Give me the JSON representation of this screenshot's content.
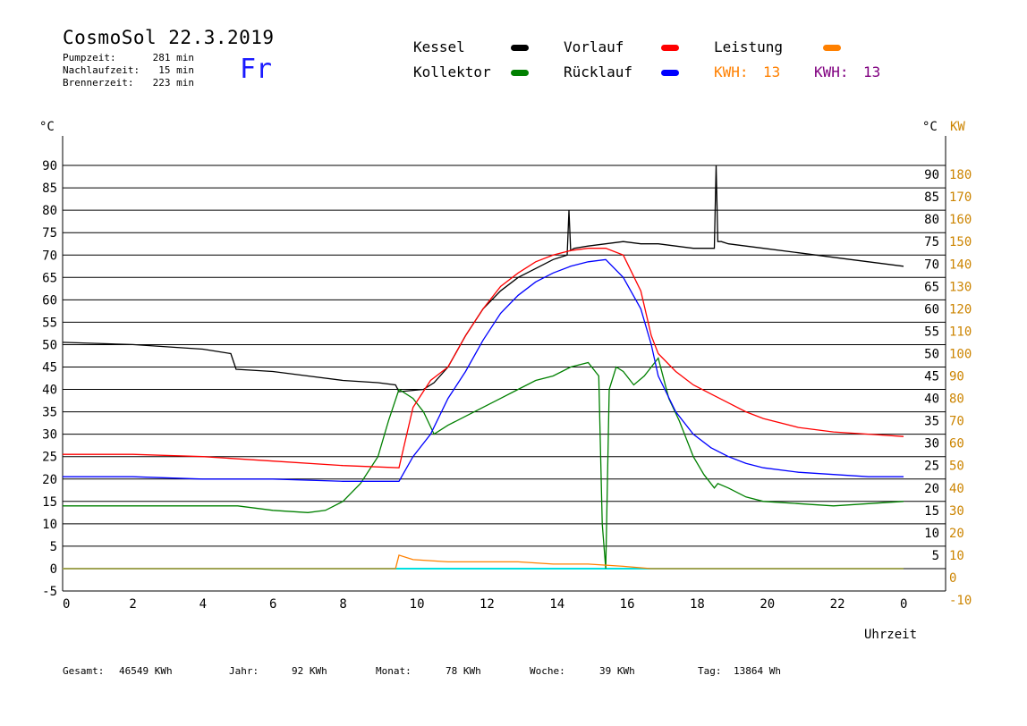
{
  "header": {
    "title": "CosmoSol 22.3.2019",
    "day": "Fr",
    "stats": [
      {
        "label": "Pumpzeit:",
        "value": "281 min"
      },
      {
        "label": "Nachlaufzeit:",
        "value": "15 min"
      },
      {
        "label": "Brennerzeit:",
        "value": "223 min"
      }
    ]
  },
  "legend": [
    {
      "label": "Kessel",
      "color": "#000000"
    },
    {
      "label": "Kollektor",
      "color": "#008000"
    },
    {
      "label": "Vorlauf",
      "color": "#ff0000"
    },
    {
      "label": "Rücklauf",
      "color": "#0000ff"
    },
    {
      "label": "Leistung",
      "color": "#ff8000"
    }
  ],
  "kwh": [
    {
      "label": "KWH:",
      "value": "13",
      "color": "#ff8000"
    },
    {
      "label": "KWH:",
      "value": "13",
      "color": "#800080"
    }
  ],
  "footer": [
    {
      "label": "Gesamt:",
      "value": "46549 KWh"
    },
    {
      "label": "Jahr:",
      "value": "92 KWh"
    },
    {
      "label": "Monat:",
      "value": "78 KWh"
    },
    {
      "label": "Woche:",
      "value": "39 KWh"
    },
    {
      "label": "Tag:",
      "value": "13864 Wh"
    }
  ],
  "chart_data": {
    "type": "line",
    "xlabel": "Uhrzeit",
    "ylabel_left": "°C",
    "ylabel_right_1": "°C",
    "ylabel_right_2": "KW",
    "xlim": [
      0,
      24
    ],
    "ylim": [
      -5,
      95
    ],
    "ylim_kw": [
      -10,
      190
    ],
    "grid": "horizontal",
    "x_ticks": [
      "0",
      "2",
      "4",
      "6",
      "8",
      "10",
      "12",
      "14",
      "16",
      "18",
      "20",
      "22",
      "0"
    ],
    "y_ticks_left": [
      "-5",
      "0",
      "5",
      "10",
      "15",
      "20",
      "25",
      "30",
      "35",
      "40",
      "45",
      "50",
      "55",
      "60",
      "65",
      "70",
      "75",
      "80",
      "85",
      "90"
    ],
    "y_ticks_right": [
      "5",
      "10",
      "15",
      "20",
      "25",
      "30",
      "35",
      "40",
      "45",
      "50",
      "55",
      "60",
      "65",
      "70",
      "75",
      "80",
      "85",
      "90"
    ],
    "kw_ticks": [
      "-10",
      "0",
      "10",
      "20",
      "30",
      "40",
      "50",
      "60",
      "70",
      "80",
      "90",
      "100",
      "110",
      "120",
      "130",
      "140",
      "150",
      "160",
      "170",
      "180"
    ],
    "series": [
      {
        "name": "Kessel",
        "color": "#000000",
        "x": [
          0,
          2,
          4,
          4.8,
          4.95,
          6,
          7,
          8,
          9,
          9.5,
          9.6,
          10.3,
          10.6,
          11,
          11.5,
          12,
          12.5,
          13,
          13.5,
          14,
          14.4,
          14.45,
          14.5,
          14.6,
          15,
          15.5,
          16,
          16.5,
          17,
          17.5,
          18,
          18.6,
          18.65,
          18.7,
          18.8,
          19,
          20,
          21,
          22,
          23,
          24
        ],
        "y": [
          50.5,
          50,
          49,
          48,
          44.5,
          44,
          43,
          42,
          41.5,
          41,
          39.5,
          40,
          41.5,
          45,
          52,
          58,
          62,
          65,
          67,
          69,
          70,
          80,
          71,
          71.5,
          72,
          72.5,
          73,
          72.5,
          72.5,
          72,
          71.5,
          71.5,
          90,
          73,
          73,
          72.5,
          71.5,
          70.5,
          69.5,
          68.5,
          67.5
        ]
      },
      {
        "name": "Kollektor",
        "color": "#008000",
        "x": [
          0,
          2,
          4,
          5,
          6,
          7,
          7.5,
          8,
          8.5,
          9,
          9.3,
          9.6,
          10,
          10.3,
          10.6,
          11,
          11.5,
          12,
          12.5,
          13,
          13.5,
          14,
          14.5,
          15,
          15.3,
          15.4,
          15.5,
          15.6,
          15.8,
          16,
          16.3,
          16.6,
          17,
          17.3,
          17.6,
          18,
          18.3,
          18.6,
          18.7,
          19,
          19.5,
          20,
          21,
          22,
          23,
          24
        ],
        "y": [
          14,
          14,
          14,
          14,
          13,
          12.5,
          13,
          15,
          19,
          25,
          33,
          40,
          38,
          35,
          30,
          32,
          34,
          36,
          38,
          40,
          42,
          43,
          45,
          46,
          43,
          10,
          0,
          40,
          45,
          44,
          41,
          43,
          47,
          38,
          33,
          25,
          21,
          18,
          19,
          18,
          16,
          15,
          14.5,
          14,
          14.5,
          15
        ]
      },
      {
        "name": "Vorlauf",
        "color": "#ff0000",
        "x": [
          0,
          2,
          4,
          6,
          8,
          9.6,
          10,
          10.5,
          11,
          11.5,
          12,
          12.5,
          13,
          13.5,
          14,
          14.5,
          15,
          15.5,
          16,
          16.5,
          16.8,
          17,
          17.5,
          18,
          18.5,
          19,
          19.5,
          20,
          21,
          22,
          23,
          24
        ],
        "y": [
          25.5,
          25.5,
          25,
          24,
          23,
          22.5,
          36,
          42,
          45,
          52,
          58,
          63,
          66,
          68.5,
          70,
          71,
          71.5,
          71.5,
          70,
          62,
          52,
          48,
          44,
          41,
          39,
          37,
          35,
          33.5,
          31.5,
          30.5,
          30,
          29.5
        ]
      },
      {
        "name": "Rücklauf",
        "color": "#0000ff",
        "x": [
          0,
          2,
          4,
          6,
          8,
          9.6,
          10,
          10.5,
          11,
          11.5,
          12,
          12.5,
          13,
          13.5,
          14,
          14.5,
          15,
          15.5,
          16,
          16.5,
          16.8,
          17,
          17.5,
          18,
          18.5,
          19,
          19.5,
          20,
          21,
          22,
          23,
          24
        ],
        "y": [
          20.5,
          20.5,
          20,
          20,
          19.5,
          19.5,
          25,
          30,
          38,
          44,
          51,
          57,
          61,
          64,
          66,
          67.5,
          68.5,
          69,
          65,
          58,
          50,
          43,
          35,
          30,
          27,
          25,
          23.5,
          22.5,
          21.5,
          21,
          20.5,
          20.5
        ]
      },
      {
        "name": "Leistung",
        "color": "#ff8000",
        "x": [
          0,
          9.5,
          9.6,
          10,
          11,
          12,
          13,
          14,
          15,
          16,
          16.8,
          17,
          24
        ],
        "y": [
          0,
          0,
          3,
          2,
          1.5,
          1.5,
          1.5,
          1,
          1,
          0.5,
          0,
          0,
          0
        ]
      }
    ]
  }
}
